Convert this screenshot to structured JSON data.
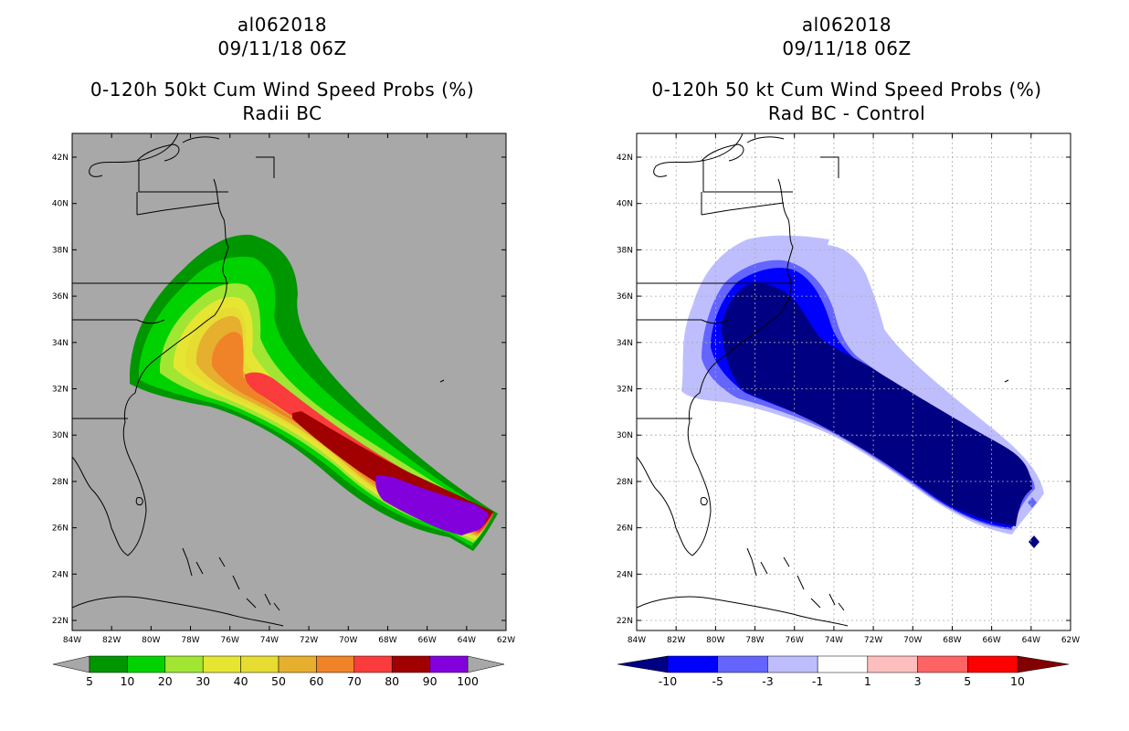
{
  "panels": [
    {
      "storm_id": "al062018",
      "datetime": "09/11/18 06Z",
      "title": "0-120h 50kt Cum Wind Speed Probs (%)",
      "subtitle": "Radii BC",
      "map_background": "#a8a8a8",
      "lat_ticks": [
        "42N",
        "40N",
        "38N",
        "36N",
        "34N",
        "32N",
        "30N",
        "28N",
        "26N",
        "24N",
        "22N"
      ],
      "lon_ticks": [
        "84W",
        "82W",
        "80W",
        "78W",
        "76W",
        "74W",
        "72W",
        "70W",
        "68W",
        "66W",
        "64W",
        "62W"
      ],
      "colorbar": {
        "left_arrow_color": "#a8a8a8",
        "right_arrow_color": "#a8a8a8",
        "colors": [
          "#009600",
          "#00d200",
          "#a0e632",
          "#e6e632",
          "#e6dc32",
          "#e6af2d",
          "#f08228",
          "#fa3c3c",
          "#a00000",
          "#8200dc"
        ],
        "labels": [
          "5",
          "10",
          "20",
          "30",
          "40",
          "50",
          "60",
          "70",
          "80",
          "90",
          "100"
        ]
      }
    },
    {
      "storm_id": "al062018",
      "datetime": "09/11/18 06Z",
      "title": "0-120h 50 kt Cum Wind Speed Probs (%)",
      "subtitle": "Rad BC - Control",
      "map_background": "#ffffff",
      "lat_ticks": [
        "42N",
        "40N",
        "38N",
        "36N",
        "34N",
        "32N",
        "30N",
        "28N",
        "26N",
        "24N",
        "22N"
      ],
      "lon_ticks": [
        "84W",
        "82W",
        "80W",
        "78W",
        "76W",
        "74W",
        "72W",
        "70W",
        "68W",
        "66W",
        "64W",
        "62W"
      ],
      "colorbar": {
        "left_arrow_color": "#000082",
        "right_arrow_color": "#820000",
        "colors": [
          "#0000ff",
          "#6464ff",
          "#bebeff",
          "#ffffff",
          "#ffbebe",
          "#ff6464",
          "#ff0000"
        ],
        "labels": [
          "-10",
          "-5",
          "-3",
          "-1",
          "1",
          "3",
          "5",
          "10"
        ]
      }
    }
  ]
}
